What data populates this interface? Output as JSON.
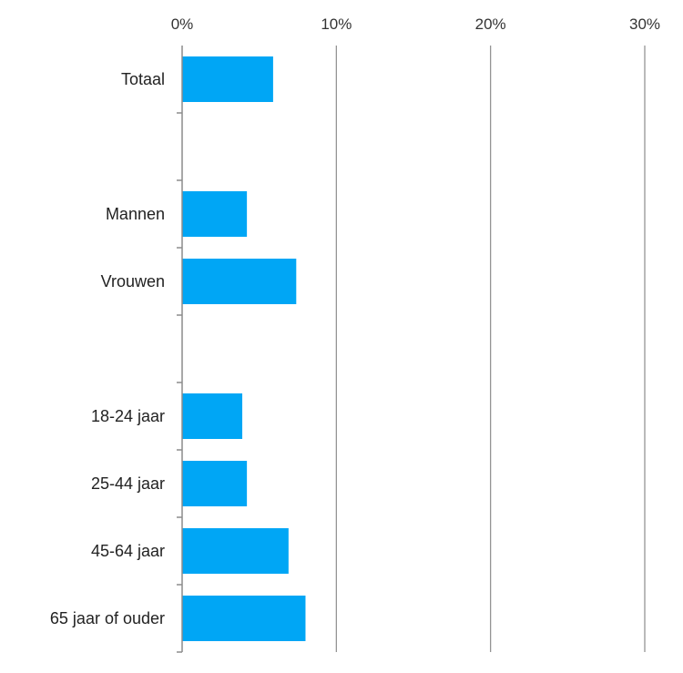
{
  "chart_data": {
    "type": "bar",
    "orientation": "horizontal",
    "categories": [
      "Totaal",
      "",
      "Mannen",
      "Vrouwen",
      "",
      "18-24 jaar",
      "25-44 jaar",
      "45-64 jaar",
      "65 jaar of ouder"
    ],
    "values": [
      5.9,
      null,
      4.2,
      7.4,
      null,
      3.9,
      4.2,
      6.9,
      8.0
    ],
    "xlim": [
      0,
      30
    ],
    "x_ticks": [
      0,
      10,
      20,
      30
    ],
    "x_tick_labels": [
      "0%",
      "10%",
      "20%",
      "30%"
    ],
    "x_axis_position": "top",
    "grid": true,
    "bar_color": "#00A6F5",
    "grid_color": "#8c8c8c",
    "title": "",
    "xlabel": "",
    "ylabel": ""
  }
}
